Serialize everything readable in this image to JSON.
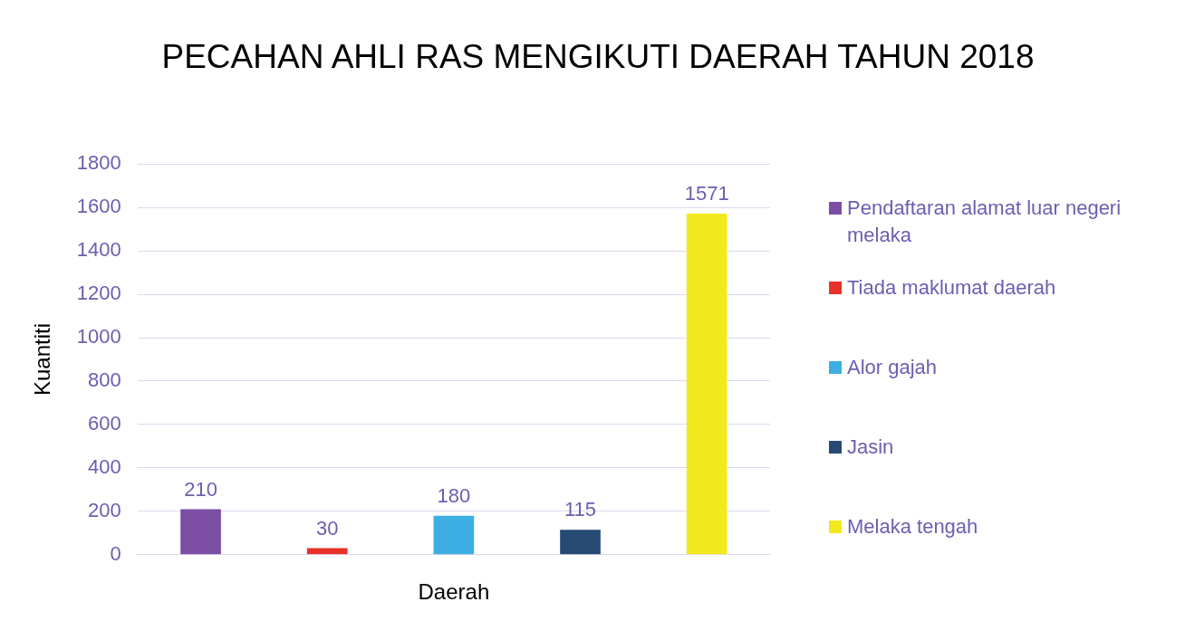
{
  "chart_data": {
    "type": "bar",
    "title": "PECAHAN AHLI RAS MENGIKUTI DAERAH TAHUN 2018",
    "xlabel": "Daerah",
    "ylabel": "Kuantiti",
    "categories": [
      null
    ],
    "series": [
      {
        "name": "Pendaftaran alamat luar negeri melaka",
        "color": "#7b4ea3",
        "values": [
          210
        ]
      },
      {
        "name": "Tiada maklumat daerah",
        "color": "#e8312a",
        "values": [
          30
        ]
      },
      {
        "name": "Alor gajah",
        "color": "#3daee3",
        "values": [
          180
        ]
      },
      {
        "name": "Jasin",
        "color": "#264a73",
        "values": [
          115
        ]
      },
      {
        "name": "Melaka tengah",
        "color": "#f2e91c",
        "values": [
          1571
        ]
      }
    ],
    "ylim": [
      0,
      1800
    ],
    "yticks": [
      0,
      200,
      400,
      600,
      800,
      1000,
      1200,
      1400,
      1600,
      1800
    ],
    "grid": "y",
    "legend": "right",
    "data_labels": true
  }
}
